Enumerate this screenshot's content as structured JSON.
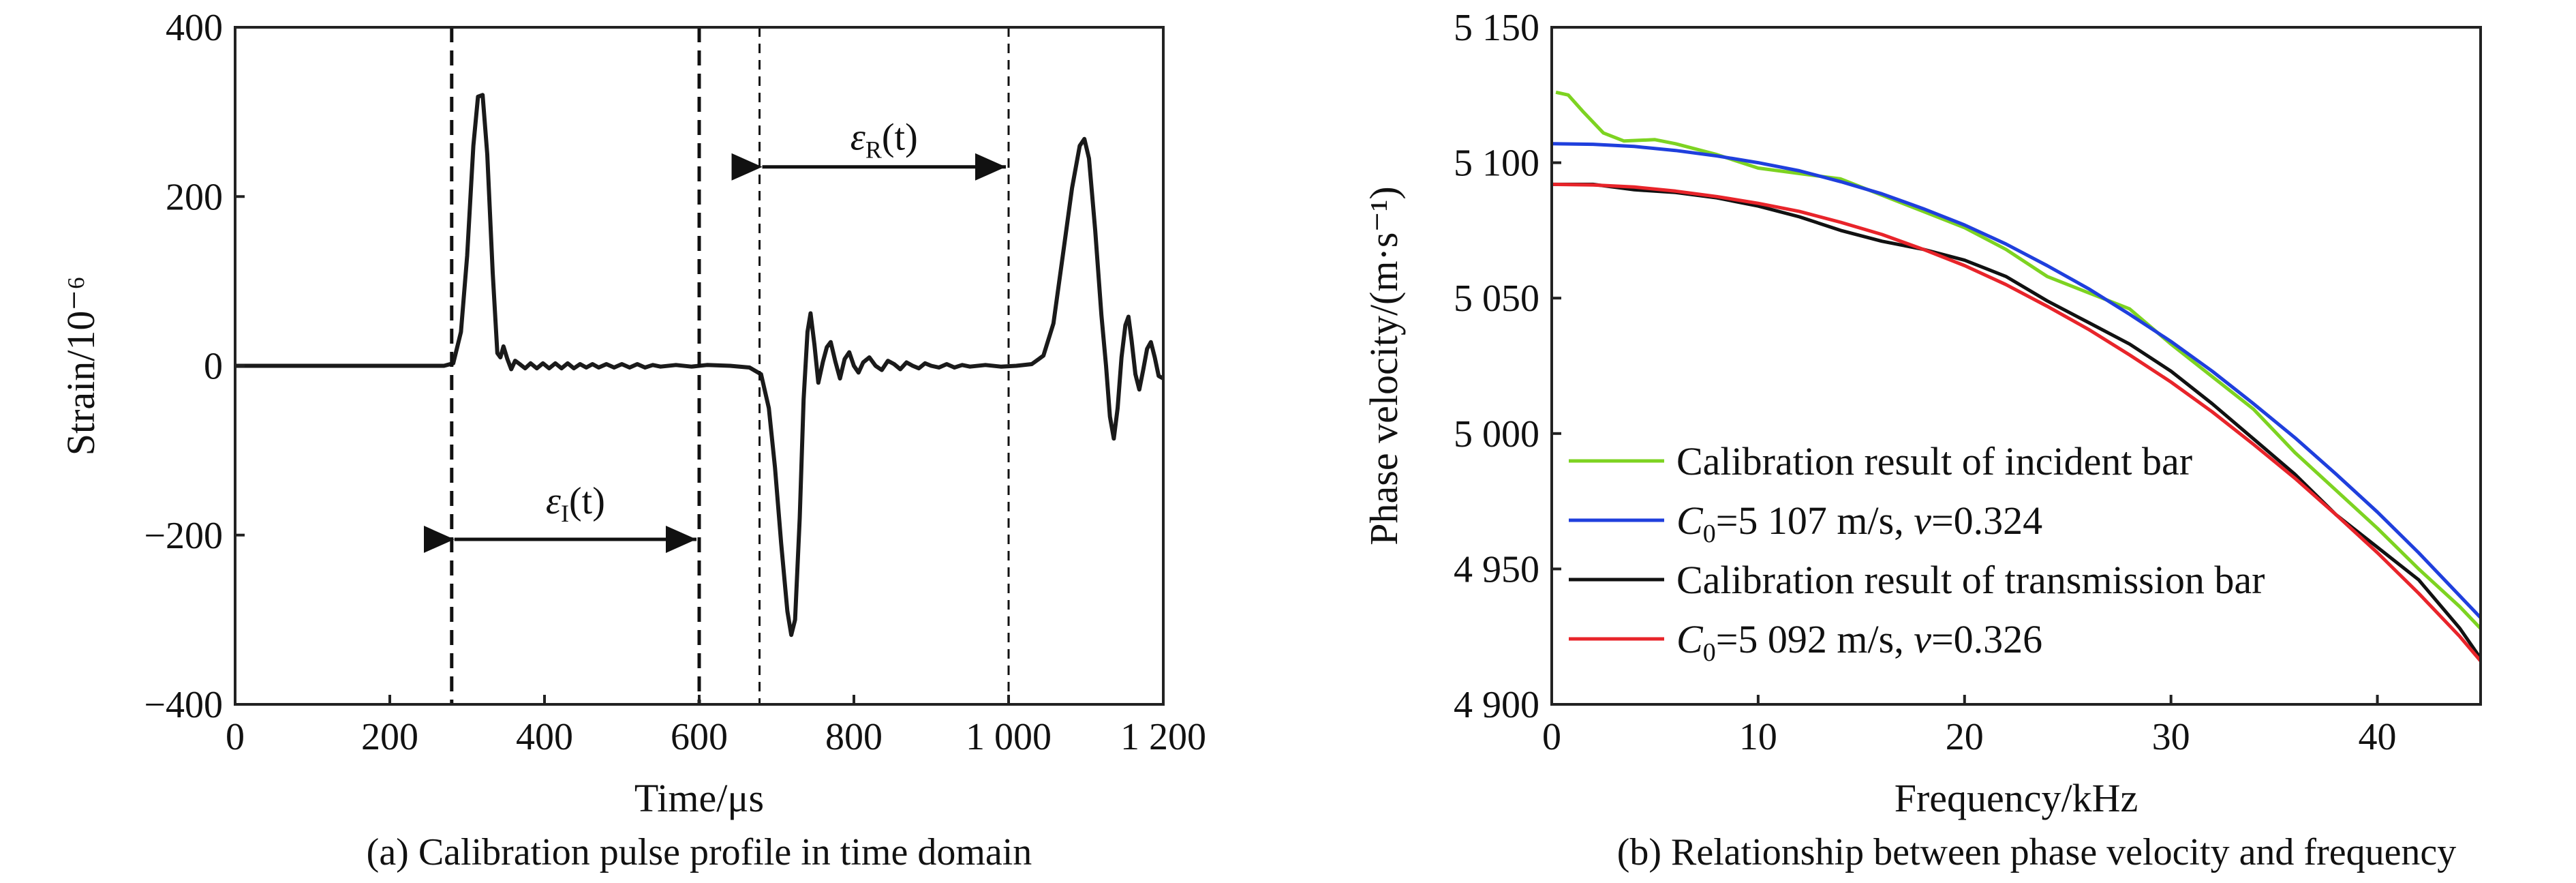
{
  "chart_data": [
    {
      "type": "line",
      "caption": "(a) Calibration pulse profile in time domain",
      "xlabel": "Time/μs",
      "ylabel": "Strain/10⁻⁶",
      "xlim": [
        0,
        1200
      ],
      "ylim": [
        -400,
        400
      ],
      "x_ticks": [
        0,
        200,
        400,
        600,
        800,
        1000,
        1200
      ],
      "x_tick_labels": [
        "0",
        "200",
        "400",
        "600",
        "800",
        "1 000",
        "1 200"
      ],
      "y_ticks": [
        -400,
        -200,
        0,
        200,
        400
      ],
      "y_tick_labels": [
        "−400",
        "−200",
        "0",
        "200",
        "400"
      ],
      "series": [
        {
          "color": "#1a1a1a",
          "points": [
            [
              0,
              0
            ],
            [
              270,
              0
            ],
            [
              282,
              3
            ],
            [
              292,
              40
            ],
            [
              300,
              130
            ],
            [
              308,
              260
            ],
            [
              314,
              318
            ],
            [
              320,
              320
            ],
            [
              326,
              250
            ],
            [
              333,
              110
            ],
            [
              339,
              15
            ],
            [
              343,
              10
            ],
            [
              347,
              23
            ],
            [
              352,
              8
            ],
            [
              357,
              -4
            ],
            [
              362,
              6
            ],
            [
              368,
              2
            ],
            [
              375,
              -3
            ],
            [
              382,
              3
            ],
            [
              390,
              -3
            ],
            [
              398,
              3
            ],
            [
              406,
              -3
            ],
            [
              414,
              3
            ],
            [
              422,
              -3
            ],
            [
              430,
              3
            ],
            [
              438,
              -3
            ],
            [
              446,
              2
            ],
            [
              454,
              -2
            ],
            [
              462,
              2
            ],
            [
              470,
              -2
            ],
            [
              480,
              2
            ],
            [
              490,
              -2
            ],
            [
              500,
              2
            ],
            [
              510,
              -2
            ],
            [
              520,
              2
            ],
            [
              530,
              -2
            ],
            [
              540,
              1
            ],
            [
              550,
              -1
            ],
            [
              570,
              1
            ],
            [
              590,
              -1
            ],
            [
              610,
              1
            ],
            [
              640,
              0
            ],
            [
              665,
              -2
            ],
            [
              680,
              -10
            ],
            [
              690,
              -50
            ],
            [
              698,
              -120
            ],
            [
              706,
              -210
            ],
            [
              714,
              -290
            ],
            [
              719,
              -318
            ],
            [
              724,
              -300
            ],
            [
              730,
              -180
            ],
            [
              735,
              -40
            ],
            [
              740,
              40
            ],
            [
              744,
              62
            ],
            [
              749,
              25
            ],
            [
              754,
              -20
            ],
            [
              760,
              5
            ],
            [
              765,
              22
            ],
            [
              770,
              28
            ],
            [
              776,
              5
            ],
            [
              782,
              -15
            ],
            [
              788,
              8
            ],
            [
              794,
              16
            ],
            [
              800,
              0
            ],
            [
              806,
              -8
            ],
            [
              812,
              4
            ],
            [
              820,
              10
            ],
            [
              828,
              0
            ],
            [
              836,
              -5
            ],
            [
              844,
              6
            ],
            [
              852,
              2
            ],
            [
              860,
              -4
            ],
            [
              868,
              4
            ],
            [
              876,
              0
            ],
            [
              884,
              -3
            ],
            [
              892,
              3
            ],
            [
              900,
              0
            ],
            [
              910,
              -2
            ],
            [
              920,
              2
            ],
            [
              930,
              -2
            ],
            [
              940,
              1
            ],
            [
              950,
              -1
            ],
            [
              970,
              1
            ],
            [
              990,
              -1
            ],
            [
              1010,
              0
            ],
            [
              1030,
              2
            ],
            [
              1045,
              12
            ],
            [
              1058,
              50
            ],
            [
              1070,
              130
            ],
            [
              1082,
              210
            ],
            [
              1092,
              260
            ],
            [
              1098,
              268
            ],
            [
              1104,
              245
            ],
            [
              1112,
              160
            ],
            [
              1120,
              60
            ],
            [
              1126,
              0
            ],
            [
              1131,
              -60
            ],
            [
              1136,
              -86
            ],
            [
              1141,
              -50
            ],
            [
              1146,
              10
            ],
            [
              1151,
              48
            ],
            [
              1155,
              58
            ],
            [
              1159,
              30
            ],
            [
              1164,
              -10
            ],
            [
              1169,
              -28
            ],
            [
              1174,
              -5
            ],
            [
              1179,
              20
            ],
            [
              1184,
              28
            ],
            [
              1189,
              10
            ],
            [
              1194,
              -12
            ],
            [
              1200,
              -15
            ]
          ]
        }
      ],
      "annotations": [
        {
          "kind": "vline",
          "x": 280,
          "style": "thick-dash"
        },
        {
          "kind": "vline",
          "x": 600,
          "style": "thick-dash"
        },
        {
          "kind": "vline",
          "x": 678,
          "style": "thin-dash"
        },
        {
          "kind": "vline",
          "x": 1000,
          "style": "thin-dash"
        },
        {
          "kind": "arrow",
          "x1": 280,
          "x2": 600,
          "y": -205,
          "label": "εI(t)",
          "label_main": "ε",
          "label_sub": "I",
          "label_tail": "(t)",
          "label_y": -160
        },
        {
          "kind": "arrow",
          "x1": 678,
          "x2": 1000,
          "y": 235,
          "label": "εR(t)",
          "label_main": "ε",
          "label_sub": "R",
          "label_tail": "(t)",
          "label_y": 270
        }
      ]
    },
    {
      "type": "line",
      "caption": "(b) Relationship between phase velocity and frequency",
      "xlabel": "Frequency/kHz",
      "ylabel": "Phase velocity/(m·s⁻¹)",
      "xlim": [
        0,
        45
      ],
      "ylim": [
        4900,
        5150
      ],
      "x_ticks": [
        0,
        10,
        20,
        30,
        40
      ],
      "x_tick_labels": [
        "0",
        "10",
        "20",
        "30",
        "40"
      ],
      "y_ticks": [
        4900,
        4950,
        5000,
        5050,
        5100,
        5150
      ],
      "y_tick_labels": [
        "4 900",
        "4 950",
        "5 000",
        "5 050",
        "5 100",
        "5 150"
      ],
      "legend_position": "lower-left",
      "series": [
        {
          "name": "Calibration result of incident bar",
          "color": "#7dd321",
          "points": [
            [
              0.2,
              5126
            ],
            [
              0.8,
              5125
            ],
            [
              1.5,
              5119
            ],
            [
              2.5,
              5111
            ],
            [
              3.5,
              5108
            ],
            [
              5,
              5108.5
            ],
            [
              6,
              5107
            ],
            [
              8,
              5103
            ],
            [
              10,
              5098
            ],
            [
              12,
              5096
            ],
            [
              14,
              5094
            ],
            [
              16,
              5088
            ],
            [
              18,
              5082
            ],
            [
              20,
              5076
            ],
            [
              22,
              5068
            ],
            [
              24,
              5058
            ],
            [
              26,
              5052
            ],
            [
              28,
              5046
            ],
            [
              30,
              5033
            ],
            [
              32,
              5021
            ],
            [
              34,
              5009
            ],
            [
              36,
              4993
            ],
            [
              38,
              4979
            ],
            [
              40,
              4965
            ],
            [
              42,
              4950
            ],
            [
              44,
              4936
            ],
            [
              45,
              4928
            ]
          ]
        },
        {
          "name": "C0=5 107 m/s, ν=0.324",
          "legend_parts": [
            {
              "text": "C",
              "italic": true
            },
            {
              "text": "0",
              "sub": true
            },
            {
              "text": "=5 107 m/s, "
            },
            {
              "text": "ν",
              "italic": true
            },
            {
              "text": "=0.324"
            }
          ],
          "color": "#1f3fdd",
          "points": [
            [
              0,
              5107
            ],
            [
              2,
              5106.8
            ],
            [
              4,
              5106
            ],
            [
              6,
              5104.5
            ],
            [
              8,
              5102.5
            ],
            [
              10,
              5100
            ],
            [
              12,
              5097
            ],
            [
              14,
              5093
            ],
            [
              16,
              5088.5
            ],
            [
              18,
              5083
            ],
            [
              20,
              5077
            ],
            [
              22,
              5070
            ],
            [
              24,
              5062
            ],
            [
              26,
              5053.5
            ],
            [
              28,
              5044
            ],
            [
              30,
              5034
            ],
            [
              32,
              5023
            ],
            [
              34,
              5011
            ],
            [
              36,
              4998.5
            ],
            [
              38,
              4985
            ],
            [
              40,
              4971
            ],
            [
              42,
              4956
            ],
            [
              44,
              4940
            ],
            [
              45,
              4932
            ]
          ]
        },
        {
          "name": "Calibration result of transmission bar",
          "color": "#111111",
          "points": [
            [
              0,
              5092
            ],
            [
              2,
              5092
            ],
            [
              4,
              5090
            ],
            [
              6,
              5089
            ],
            [
              8,
              5087
            ],
            [
              10,
              5084
            ],
            [
              12,
              5080
            ],
            [
              14,
              5075
            ],
            [
              16,
              5071
            ],
            [
              18,
              5068
            ],
            [
              20,
              5064
            ],
            [
              22,
              5058
            ],
            [
              24,
              5049
            ],
            [
              26,
              5041
            ],
            [
              28,
              5033
            ],
            [
              30,
              5023
            ],
            [
              32,
              5011
            ],
            [
              34,
              4998
            ],
            [
              36,
              4985
            ],
            [
              38,
              4970
            ],
            [
              40,
              4958
            ],
            [
              42,
              4946
            ],
            [
              44,
              4928
            ],
            [
              45,
              4917
            ]
          ]
        },
        {
          "name": "C0=5 092 m/s, ν=0.326",
          "legend_parts": [
            {
              "text": "C",
              "italic": true
            },
            {
              "text": "0",
              "sub": true
            },
            {
              "text": "=5 092 m/s, "
            },
            {
              "text": "ν",
              "italic": true
            },
            {
              "text": "=0.326"
            }
          ],
          "color": "#e8242a",
          "points": [
            [
              0,
              5092
            ],
            [
              2,
              5091.8
            ],
            [
              4,
              5091
            ],
            [
              6,
              5089.5
            ],
            [
              8,
              5087.5
            ],
            [
              10,
              5085
            ],
            [
              12,
              5082
            ],
            [
              14,
              5078
            ],
            [
              16,
              5073.5
            ],
            [
              18,
              5068
            ],
            [
              20,
              5062
            ],
            [
              22,
              5055
            ],
            [
              24,
              5047
            ],
            [
              26,
              5038.5
            ],
            [
              28,
              5029
            ],
            [
              30,
              5019
            ],
            [
              32,
              5008
            ],
            [
              34,
              4996
            ],
            [
              36,
              4983.5
            ],
            [
              38,
              4970
            ],
            [
              40,
              4956
            ],
            [
              42,
              4941
            ],
            [
              44,
              4925
            ],
            [
              45,
              4916
            ]
          ]
        }
      ]
    }
  ]
}
